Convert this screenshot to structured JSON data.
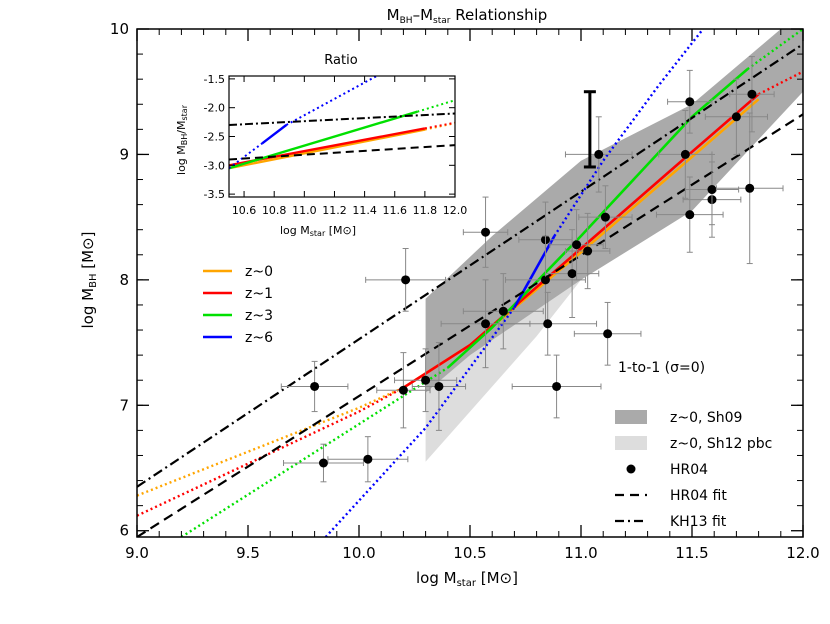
{
  "chart_data": {
    "type": "line",
    "title": "M_BH–M_star Relationship",
    "xlabel": "log M_star [M⊙]",
    "ylabel": "log M_BH [M⊙]",
    "xlim": [
      9.0,
      12.0
    ],
    "ylim": [
      5.95,
      10.0
    ],
    "xticks": [
      "9.0",
      "9.5",
      "10.0",
      "10.5",
      "11.0",
      "11.5",
      "12.0"
    ],
    "yticks": [
      "6",
      "7",
      "8",
      "9",
      "10"
    ],
    "annotation": "1-to-1 (σ=0)",
    "legend_left": {
      "placement": "left",
      "items": [
        {
          "label": "z~0",
          "color": "#ffa500"
        },
        {
          "label": "z~1",
          "color": "#ff0000"
        },
        {
          "label": "z~3",
          "color": "#00e000"
        },
        {
          "label": "z~6",
          "color": "#0000ff"
        }
      ]
    },
    "legend_right": {
      "placement": "bottom-right",
      "items": [
        {
          "label": "z~0, Sh09",
          "kind": "band",
          "color": "#aaaaaa"
        },
        {
          "label": "z~0, Sh12 pbc",
          "kind": "band",
          "color": "#dddddd"
        },
        {
          "label": "HR04",
          "kind": "point",
          "color": "#000000"
        },
        {
          "label": "HR04 fit",
          "kind": "dashed",
          "color": "#000000"
        },
        {
          "label": "KH13 fit",
          "kind": "dashdot",
          "color": "#000000"
        }
      ]
    },
    "series": [
      {
        "name": "z~0",
        "color": "#ffa500",
        "dotted": [
          [
            9.0,
            6.28
          ],
          [
            10.0,
            6.98
          ],
          [
            10.2,
            7.14
          ]
        ],
        "solid": [
          [
            10.2,
            7.14
          ],
          [
            10.5,
            7.48
          ],
          [
            11.0,
            8.22
          ],
          [
            11.5,
            8.98
          ],
          [
            11.8,
            9.44
          ]
        ]
      },
      {
        "name": "z~1",
        "color": "#ff0000",
        "dotted": [
          [
            9.0,
            6.12
          ],
          [
            10.0,
            6.95
          ],
          [
            10.2,
            7.14
          ]
        ],
        "solid": [
          [
            10.2,
            7.14
          ],
          [
            10.5,
            7.48
          ],
          [
            11.0,
            8.25
          ],
          [
            11.5,
            9.02
          ],
          [
            11.8,
            9.48
          ]
        ],
        "dotted_tail": [
          [
            11.8,
            9.48
          ],
          [
            12.0,
            9.66
          ]
        ]
      },
      {
        "name": "z~3",
        "color": "#00e000",
        "dotted": [
          [
            9.2,
            5.95
          ],
          [
            10.0,
            6.85
          ],
          [
            10.4,
            7.3
          ]
        ],
        "solid": [
          [
            10.4,
            7.3
          ],
          [
            10.6,
            7.62
          ],
          [
            11.0,
            8.35
          ],
          [
            11.5,
            9.3
          ],
          [
            11.75,
            9.68
          ]
        ],
        "dotted_tail": [
          [
            11.75,
            9.68
          ],
          [
            12.0,
            10.0
          ]
        ]
      },
      {
        "name": "z~6",
        "color": "#0000ff",
        "dotted": [
          [
            9.85,
            5.95
          ],
          [
            10.3,
            6.82
          ],
          [
            10.7,
            7.78
          ]
        ],
        "solid": [
          [
            10.7,
            7.78
          ],
          [
            10.88,
            8.35
          ]
        ],
        "dotted_tail": [
          [
            10.88,
            8.35
          ],
          [
            11.1,
            8.95
          ],
          [
            11.35,
            9.55
          ],
          [
            11.55,
            10.0
          ]
        ]
      },
      {
        "name": "HR04 fit",
        "style": "dashed",
        "color": "#000000",
        "line": [
          [
            9.0,
            5.95
          ],
          [
            12.0,
            9.32
          ]
        ]
      },
      {
        "name": "KH13 fit",
        "style": "dashdot",
        "color": "#000000",
        "line": [
          [
            9.0,
            6.35
          ],
          [
            12.0,
            9.88
          ]
        ]
      }
    ],
    "bands": [
      {
        "name": "z~0, Sh12 pbc",
        "color": "#dddddd",
        "polygon": [
          [
            10.3,
            6.55
          ],
          [
            10.5,
            6.95
          ],
          [
            10.8,
            7.55
          ],
          [
            11.0,
            8.0
          ],
          [
            11.0,
            8.5
          ],
          [
            10.8,
            8.55
          ],
          [
            10.5,
            7.65
          ],
          [
            10.3,
            7.25
          ]
        ]
      },
      {
        "name": "z~0, Sh09",
        "color": "#aaaaaa",
        "polygon": [
          [
            10.3,
            7.1
          ],
          [
            10.5,
            7.4
          ],
          [
            11.0,
            8.0
          ],
          [
            11.5,
            8.55
          ],
          [
            12.0,
            9.5
          ],
          [
            12.0,
            10.0
          ],
          [
            11.9,
            10.0
          ],
          [
            11.5,
            9.4
          ],
          [
            11.0,
            8.95
          ],
          [
            10.6,
            8.35
          ],
          [
            10.3,
            7.85
          ]
        ]
      }
    ],
    "error_bar_key": {
      "x": 11.04,
      "ylow": 8.9,
      "yhigh": 9.5
    },
    "points_HR04": [
      {
        "x": 9.84,
        "y": 6.54,
        "xerr": 0.18,
        "ylo": 0.15,
        "yhi": 0.15
      },
      {
        "x": 10.04,
        "y": 6.57,
        "xerr": 0.18,
        "ylo": 0.18,
        "yhi": 0.18
      },
      {
        "x": 9.8,
        "y": 7.15,
        "xerr": 0.15,
        "ylo": 0.2,
        "yhi": 0.2
      },
      {
        "x": 10.2,
        "y": 7.12,
        "xerr": 0.12,
        "ylo": 0.3,
        "yhi": 0.3
      },
      {
        "x": 10.3,
        "y": 7.2,
        "xerr": 0.14,
        "ylo": 0.25,
        "yhi": 0.25
      },
      {
        "x": 10.36,
        "y": 7.15,
        "xerr": 0.12,
        "ylo": 0.35,
        "yhi": 0.35
      },
      {
        "x": 10.21,
        "y": 8.0,
        "xerr": 0.18,
        "ylo": 0.25,
        "yhi": 0.25
      },
      {
        "x": 10.57,
        "y": 8.38,
        "xerr": 0.1,
        "ylo": 0.28,
        "yhi": 0.28
      },
      {
        "x": 10.57,
        "y": 7.65,
        "xerr": 0.2,
        "ylo": 0.35,
        "yhi": 0.35
      },
      {
        "x": 10.65,
        "y": 7.75,
        "xerr": 0.18,
        "ylo": 0.3,
        "yhi": 0.3
      },
      {
        "x": 10.84,
        "y": 8.32,
        "xerr": 0.12,
        "ylo": 0.3,
        "yhi": 0.3
      },
      {
        "x": 10.84,
        "y": 8.0,
        "xerr": 0.18,
        "ylo": 0.35,
        "yhi": 0.35
      },
      {
        "x": 10.85,
        "y": 7.65,
        "xerr": 0.22,
        "ylo": 0.25,
        "yhi": 0.25
      },
      {
        "x": 10.89,
        "y": 7.15,
        "xerr": 0.2,
        "ylo": 0.25,
        "yhi": 0.25
      },
      {
        "x": 10.96,
        "y": 8.05,
        "xerr": 0.12,
        "ylo": 0.35,
        "yhi": 0.35
      },
      {
        "x": 10.98,
        "y": 8.28,
        "xerr": 0.12,
        "ylo": 0.28,
        "yhi": 0.28
      },
      {
        "x": 11.03,
        "y": 8.23,
        "xerr": 0.1,
        "ylo": 0.3,
        "yhi": 0.3
      },
      {
        "x": 11.08,
        "y": 9.0,
        "xerr": 0.15,
        "ylo": 0.3,
        "yhi": 0.3
      },
      {
        "x": 11.11,
        "y": 8.5,
        "xerr": 0.12,
        "ylo": 0.25,
        "yhi": 0.25
      },
      {
        "x": 11.12,
        "y": 7.57,
        "xerr": 0.15,
        "ylo": 0.25,
        "yhi": 0.25
      },
      {
        "x": 11.47,
        "y": 9.0,
        "xerr": 0.12,
        "ylo": 0.35,
        "yhi": 0.35
      },
      {
        "x": 11.49,
        "y": 9.42,
        "xerr": 0.1,
        "ylo": 0.25,
        "yhi": 0.25
      },
      {
        "x": 11.49,
        "y": 8.52,
        "xerr": 0.15,
        "ylo": 0.3,
        "yhi": 0.3
      },
      {
        "x": 11.59,
        "y": 8.64,
        "xerr": 0.13,
        "ylo": 0.3,
        "yhi": 0.3
      },
      {
        "x": 11.59,
        "y": 8.72,
        "xerr": 0.12,
        "ylo": 0.28,
        "yhi": 0.28
      },
      {
        "x": 11.7,
        "y": 9.3,
        "xerr": 0.14,
        "ylo": 0.3,
        "yhi": 0.3
      },
      {
        "x": 11.77,
        "y": 9.48,
        "xerr": 0.1,
        "ylo": 0.3,
        "yhi": 0.3
      },
      {
        "x": 11.76,
        "y": 8.73,
        "xerr": 0.15,
        "ylo": 0.6,
        "yhi": 0.6
      }
    ],
    "inset": {
      "title": "Ratio",
      "xlabel": "log M_star [M⊙]",
      "ylabel": "log M_BH/M_star",
      "xlim": [
        10.5,
        12.0
      ],
      "ylim": [
        -3.55,
        -1.45
      ],
      "xticks": [
        "10.6",
        "10.8",
        "11.0",
        "11.2",
        "11.4",
        "11.6",
        "11.8",
        "12.0"
      ],
      "yticks": [
        "-1.5",
        "-2.0",
        "-2.5",
        "-3.0",
        "-3.5"
      ],
      "series": [
        {
          "name": "z~0",
          "color": "#ffa500",
          "solid": [
            [
              10.5,
              -3.05
            ],
            [
              11.8,
              -2.38
            ]
          ],
          "dotted": [
            [
              11.8,
              -2.38
            ],
            [
              12.0,
              -2.27
            ]
          ]
        },
        {
          "name": "z~1",
          "color": "#ff0000",
          "solid": [
            [
              10.5,
              -3.0
            ],
            [
              11.8,
              -2.36
            ]
          ],
          "dotted": [
            [
              11.8,
              -2.36
            ],
            [
              12.0,
              -2.26
            ]
          ]
        },
        {
          "name": "z~3",
          "color": "#00e000",
          "solid": [
            [
              10.5,
              -3.05
            ],
            [
              11.75,
              -2.07
            ]
          ],
          "dotted": [
            [
              11.75,
              -2.07
            ],
            [
              12.0,
              -1.87
            ]
          ]
        },
        {
          "name": "z~6",
          "color": "#0000ff",
          "dotted": [
            [
              10.5,
              -3.05
            ],
            [
              10.72,
              -2.62
            ]
          ],
          "solid": [
            [
              10.72,
              -2.62
            ],
            [
              10.88,
              -2.3
            ]
          ],
          "dotted_tail": [
            [
              10.88,
              -2.3
            ],
            [
              11.48,
              -1.45
            ]
          ]
        },
        {
          "name": "HR04 fit",
          "style": "dashed",
          "color": "#000000",
          "line": [
            [
              10.5,
              -2.9
            ],
            [
              12.0,
              -2.65
            ]
          ]
        },
        {
          "name": "KH13 fit",
          "style": "dashdot",
          "color": "#000000",
          "line": [
            [
              10.5,
              -2.3
            ],
            [
              12.0,
              -2.1
            ]
          ]
        }
      ]
    }
  }
}
